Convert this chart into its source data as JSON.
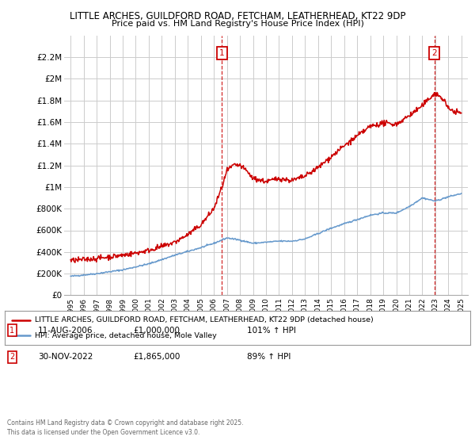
{
  "title1": "LITTLE ARCHES, GUILDFORD ROAD, FETCHAM, LEATHERHEAD, KT22 9DP",
  "title2": "Price paid vs. HM Land Registry's House Price Index (HPI)",
  "legend_line1": "LITTLE ARCHES, GUILDFORD ROAD, FETCHAM, LEATHERHEAD, KT22 9DP (detached house)",
  "legend_line2": "HPI: Average price, detached house, Mole Valley",
  "marker1_date": "11-AUG-2006",
  "marker1_price": "£1,000,000",
  "marker1_hpi": "101% ↑ HPI",
  "marker2_date": "30-NOV-2022",
  "marker2_price": "£1,865,000",
  "marker2_hpi": "89% ↑ HPI",
  "footer": "Contains HM Land Registry data © Crown copyright and database right 2025.\nThis data is licensed under the Open Government Licence v3.0.",
  "red_color": "#cc0000",
  "blue_color": "#6699cc",
  "grid_color": "#cccccc",
  "bg_color": "#ffffff",
  "ylim": [
    0,
    2400000
  ],
  "yticks": [
    0,
    200000,
    400000,
    600000,
    800000,
    1000000,
    1200000,
    1400000,
    1600000,
    1800000,
    2000000,
    2200000
  ],
  "ytick_labels": [
    "£0",
    "£200K",
    "£400K",
    "£600K",
    "£800K",
    "£1M",
    "£1.2M",
    "£1.4M",
    "£1.6M",
    "£1.8M",
    "£2M",
    "£2.2M"
  ],
  "xlim_start": 1994.5,
  "xlim_end": 2025.5,
  "marker1_x": 2006.62,
  "marker1_y": 1000000,
  "marker2_x": 2022.92,
  "marker2_y": 1865000
}
